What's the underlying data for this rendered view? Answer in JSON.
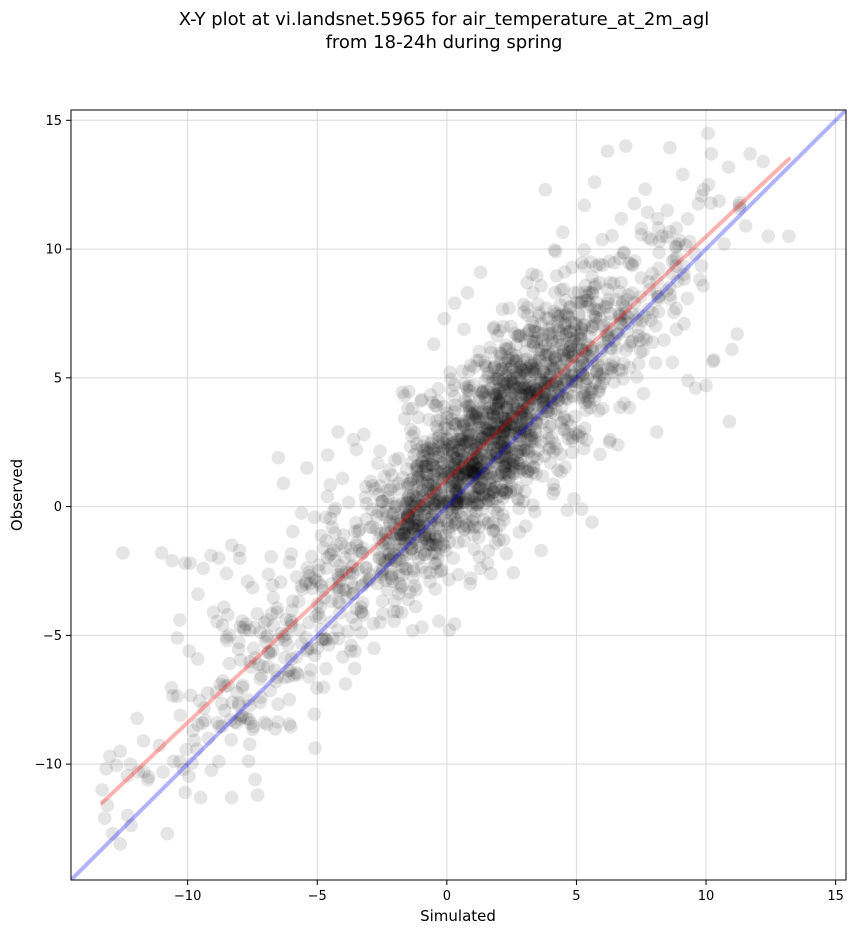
{
  "chart_data": {
    "type": "scatter",
    "title_line1": "X-Y plot at vi.landsnet.5965 for air_temperature_at_2m_agl",
    "title_line2": "from 18-24h during spring",
    "xlabel": "Simulated",
    "ylabel": "Observed",
    "xlim": [
      -14.5,
      15.4
    ],
    "ylim": [
      -14.5,
      15.4
    ],
    "xticks": [
      -10,
      -5,
      0,
      5,
      10,
      15
    ],
    "yticks": [
      -10,
      -5,
      0,
      5,
      10,
      15
    ],
    "xtick_labels": [
      "−10",
      "−5",
      "0",
      "5",
      "10",
      "15"
    ],
    "ytick_labels": [
      "−10",
      "−5",
      "0",
      "5",
      "10",
      "15"
    ],
    "grid": true,
    "point_color": "#000000",
    "point_opacity": 0.1,
    "point_count": 2200,
    "points_sample": [
      [
        -13.3,
        -11.0
      ],
      [
        -13.1,
        -11.6
      ],
      [
        -13.2,
        -12.1
      ],
      [
        -12.9,
        -12.7
      ],
      [
        -12.6,
        -13.1
      ],
      [
        -12.5,
        -1.8
      ],
      [
        -13.0,
        -9.7
      ],
      [
        -12.6,
        -9.5
      ],
      [
        -12.2,
        -10.0
      ],
      [
        -11.9,
        -10.3
      ],
      [
        -11.7,
        -9.1
      ],
      [
        -11.5,
        -10.5
      ],
      [
        -11.0,
        -1.8
      ],
      [
        -10.6,
        -2.1
      ],
      [
        -10.3,
        -4.4
      ],
      [
        -10.4,
        -5.1
      ],
      [
        -10.1,
        -2.2
      ],
      [
        -9.9,
        -2.2
      ],
      [
        -9.6,
        -3.4
      ],
      [
        -9.4,
        -2.4
      ],
      [
        -9.1,
        -1.9
      ],
      [
        -8.8,
        -2.0
      ],
      [
        -8.5,
        -2.6
      ],
      [
        -8.3,
        -1.5
      ],
      [
        -8.0,
        -1.7
      ],
      [
        -8.6,
        -3.9
      ],
      [
        -9.0,
        -4.1
      ],
      [
        -8.3,
        -11.3
      ],
      [
        -7.4,
        -10.6
      ],
      [
        -7.3,
        -11.2
      ],
      [
        -8.8,
        -9.9
      ],
      [
        -9.5,
        -11.3
      ],
      [
        -10.1,
        -11.1
      ],
      [
        -6.5,
        1.9
      ],
      [
        -6.3,
        0.9
      ],
      [
        -5.4,
        1.5
      ],
      [
        -4.6,
        2.0
      ],
      [
        -4.2,
        2.9
      ],
      [
        -3.6,
        2.6
      ],
      [
        -3.2,
        2.8
      ],
      [
        -1.5,
        3.8
      ],
      [
        -1.0,
        4.1
      ],
      [
        -0.4,
        3.9
      ],
      [
        -0.1,
        7.3
      ],
      [
        0.3,
        7.9
      ],
      [
        0.8,
        8.3
      ],
      [
        1.3,
        9.1
      ],
      [
        2.4,
        7.7
      ],
      [
        3.1,
        8.7
      ],
      [
        3.8,
        12.3
      ],
      [
        4.2,
        9.9
      ],
      [
        5.3,
        11.7
      ],
      [
        5.7,
        12.6
      ],
      [
        6.2,
        13.8
      ],
      [
        6.9,
        14.0
      ],
      [
        7.5,
        10.8
      ],
      [
        8.2,
        10.3
      ],
      [
        8.5,
        11.5
      ],
      [
        9.1,
        12.9
      ],
      [
        9.9,
        12.3
      ],
      [
        10.2,
        13.7
      ],
      [
        10.1,
        12.5
      ],
      [
        10.7,
        10.2
      ],
      [
        11.3,
        11.8
      ],
      [
        11.7,
        13.7
      ],
      [
        12.2,
        13.4
      ],
      [
        12.4,
        10.5
      ],
      [
        13.2,
        10.5
      ],
      [
        11.2,
        6.7
      ],
      [
        11.0,
        6.1
      ],
      [
        10.9,
        3.3
      ],
      [
        10.3,
        5.7
      ],
      [
        10.0,
        4.7
      ],
      [
        9.6,
        4.6
      ],
      [
        9.3,
        4.9
      ],
      [
        8.7,
        5.6
      ],
      [
        8.1,
        2.9
      ],
      [
        6.6,
        2.4
      ],
      [
        6.3,
        2.6
      ],
      [
        5.6,
        -0.6
      ],
      [
        5.2,
        -0.1
      ],
      [
        4.9,
        0.3
      ],
      [
        4.1,
        0.5
      ],
      [
        3.4,
        -0.2
      ],
      [
        2.8,
        -1.0
      ],
      [
        2.2,
        -1.3
      ],
      [
        1.7,
        -2.6
      ],
      [
        1.3,
        -2.4
      ],
      [
        0.9,
        -3.0
      ],
      [
        0.1,
        -4.8
      ],
      [
        -1.3,
        -2.4
      ],
      [
        -2.1,
        -2.9
      ],
      [
        -3.3,
        -3.9
      ],
      [
        -4.2,
        -4.8
      ],
      [
        -5.0,
        -5.5
      ],
      [
        -6.1,
        -6.6
      ],
      [
        -7.2,
        -7.6
      ],
      [
        -8.1,
        -8.4
      ],
      [
        -9.2,
        -9.0
      ],
      [
        -10.3,
        -9.9
      ],
      [
        -0.2,
        0.1
      ],
      [
        0.4,
        0.6
      ],
      [
        1.1,
        1.3
      ],
      [
        1.8,
        2.4
      ],
      [
        2.5,
        3.4
      ],
      [
        3.3,
        4.5
      ],
      [
        4.0,
        5.1
      ],
      [
        4.7,
        6.0
      ],
      [
        5.5,
        6.6
      ],
      [
        6.2,
        7.9
      ]
    ],
    "lines": [
      {
        "color": "#ff0000",
        "opacity": 0.3,
        "x": [
          -13.3,
          13.2
        ],
        "y": [
          -11.5,
          13.5
        ]
      },
      {
        "color": "#0000ff",
        "opacity": 0.3,
        "x": [
          -14.5,
          15.4
        ],
        "y": [
          -14.5,
          15.4
        ]
      }
    ]
  }
}
